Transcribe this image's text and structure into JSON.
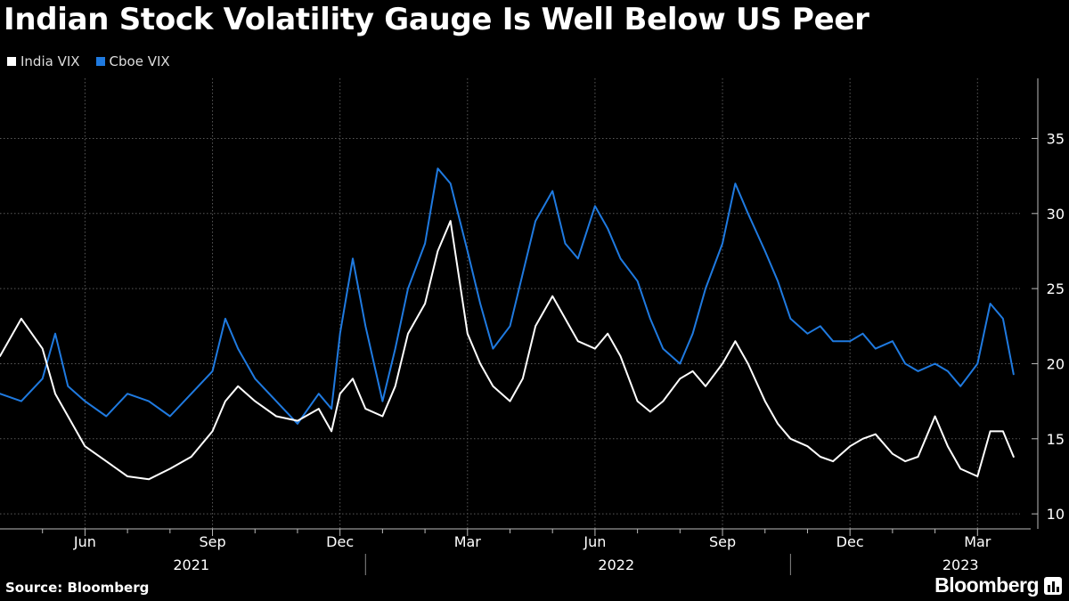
{
  "header": {
    "title": "Indian Stock Volatility Gauge Is Well Below US Peer"
  },
  "legend": [
    {
      "label": "India VIX",
      "color": "#ffffff"
    },
    {
      "label": "Cboe VIX",
      "color": "#1f7ae0"
    }
  ],
  "footer": {
    "source": "Source: Bloomberg",
    "brand": "Bloomberg"
  },
  "chart_data": {
    "type": "line",
    "title": "Indian Stock Volatility Gauge Is Well Below US Peer",
    "xlabel": "",
    "ylabel": "",
    "xlim": [
      0,
      24
    ],
    "ylim": [
      9,
      39
    ],
    "y_ticks": [
      10,
      15,
      20,
      25,
      30,
      35
    ],
    "y_axis_side": "right",
    "grid": true,
    "legend_position": "top-left",
    "x_ticks": [
      {
        "x": 2,
        "label": "Jun"
      },
      {
        "x": 5,
        "label": "Sep"
      },
      {
        "x": 8,
        "label": "Dec"
      },
      {
        "x": 11,
        "label": "Mar"
      },
      {
        "x": 14,
        "label": "Jun"
      },
      {
        "x": 17,
        "label": "Sep"
      },
      {
        "x": 20,
        "label": "Dec"
      },
      {
        "x": 23,
        "label": "Mar"
      }
    ],
    "minor_ticks": [
      1,
      3,
      4,
      6,
      7,
      9,
      10,
      12,
      13,
      15,
      16,
      18,
      19,
      21,
      22
    ],
    "years": [
      {
        "label": "2021",
        "center": 4.5
      },
      {
        "label": "2022",
        "center": 14.5
      },
      {
        "label": "2023",
        "center": 22.6
      }
    ],
    "year_dividers": [
      8.6,
      18.6
    ],
    "x": [
      0,
      0.5,
      1,
      1.3,
      1.6,
      2,
      2.5,
      3,
      3.5,
      4,
      4.5,
      5,
      5.3,
      5.6,
      6,
      6.5,
      7,
      7.5,
      7.8,
      8,
      8.3,
      8.6,
      9,
      9.3,
      9.6,
      10,
      10.3,
      10.6,
      11,
      11.3,
      11.6,
      12,
      12.3,
      12.6,
      13,
      13.3,
      13.6,
      14,
      14.3,
      14.6,
      15,
      15.3,
      15.6,
      16,
      16.3,
      16.6,
      17,
      17.3,
      17.6,
      18,
      18.3,
      18.6,
      19,
      19.3,
      19.6,
      20,
      20.3,
      20.6,
      21,
      21.3,
      21.6,
      22,
      22.3,
      22.6,
      23,
      23.3,
      23.6,
      23.85
    ],
    "series": [
      {
        "name": "India VIX",
        "color": "#ffffff",
        "values": [
          20.5,
          23,
          21,
          18,
          16.5,
          14.5,
          13.5,
          12.5,
          12.3,
          13,
          13.8,
          15.5,
          17.5,
          18.5,
          17.5,
          16.5,
          16.2,
          17,
          15.5,
          18,
          19,
          17,
          16.5,
          18.5,
          22,
          24,
          27.5,
          29.5,
          22,
          20,
          18.5,
          17.5,
          19,
          22.5,
          24.5,
          23,
          21.5,
          21,
          22,
          20.5,
          17.5,
          16.8,
          17.5,
          19,
          19.5,
          18.5,
          20,
          21.5,
          20,
          17.5,
          16,
          15,
          14.5,
          13.8,
          13.5,
          14.5,
          15,
          15.3,
          14,
          13.5,
          13.8,
          16.5,
          14.5,
          13,
          12.5,
          15.5,
          15.5,
          13.8
        ]
      },
      {
        "name": "Cboe VIX",
        "color": "#1f7ae0",
        "values": [
          18,
          17.5,
          19,
          22,
          18.5,
          17.5,
          16.5,
          18,
          17.5,
          16.5,
          18,
          19.5,
          23,
          21,
          19,
          17.5,
          16,
          18,
          17,
          22,
          27,
          22.5,
          17.5,
          21,
          25,
          28,
          33,
          32,
          27.5,
          24,
          21,
          22.5,
          26,
          29.5,
          31.5,
          28,
          27,
          30.5,
          29,
          27,
          25.5,
          23,
          21,
          20,
          22,
          25,
          28,
          32,
          30,
          27.5,
          25.5,
          23,
          22,
          22.5,
          21.5,
          21.5,
          22,
          21,
          21.5,
          20,
          19.5,
          20,
          19.5,
          18.5,
          20,
          24,
          23,
          19.3
        ]
      }
    ]
  }
}
